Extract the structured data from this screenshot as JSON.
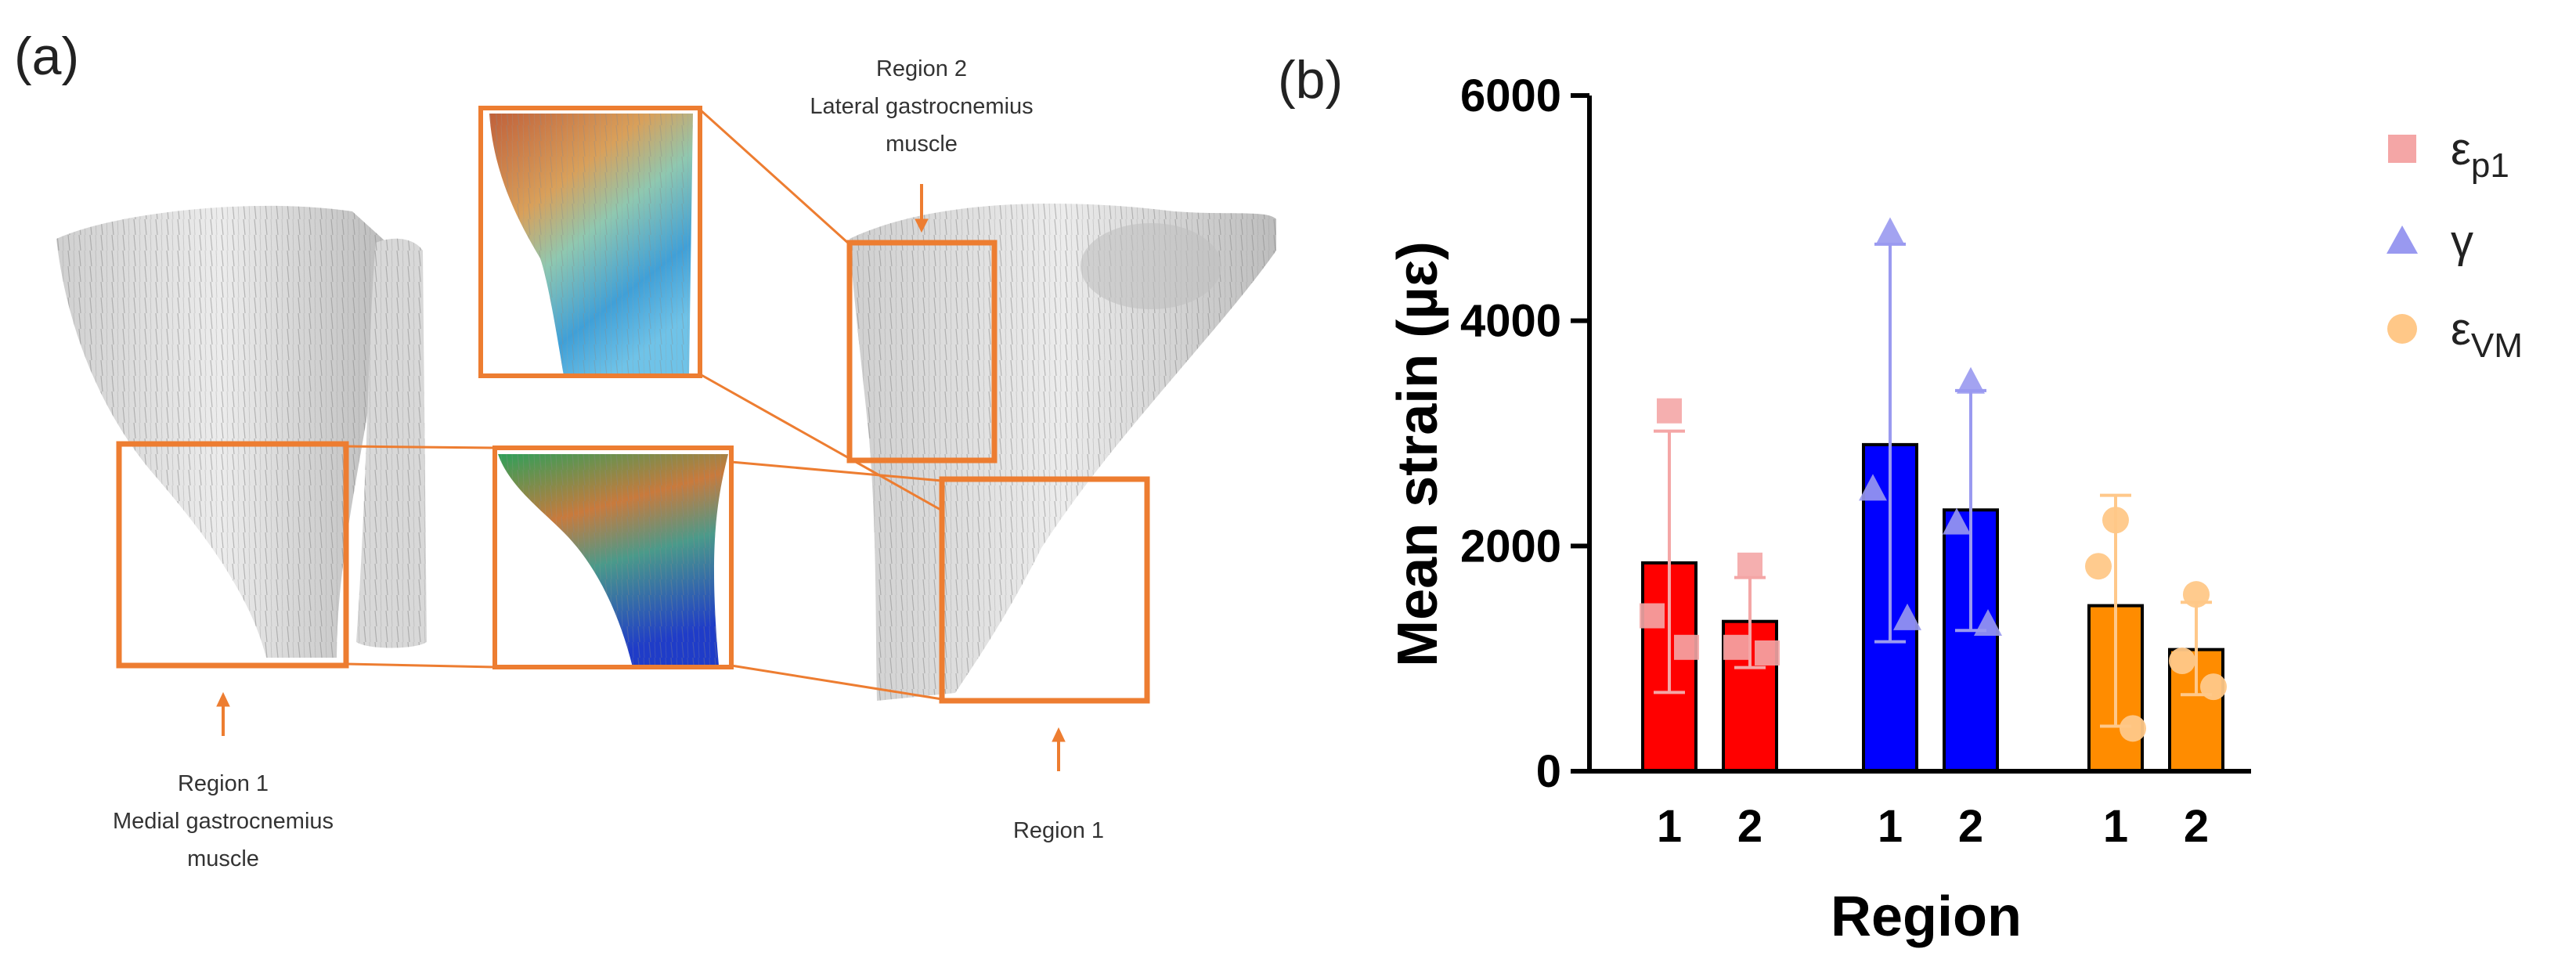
{
  "panel_a": {
    "label": "(a)",
    "region2_top": [
      "Region 2",
      "Lateral gastrocnemius",
      "muscle"
    ],
    "region1_left": [
      "Region 1",
      "Medial gastrocnemius",
      "muscle"
    ],
    "region1_right": "Region 1"
  },
  "panel_b": {
    "label": "(b)"
  },
  "colors": {
    "box": "#ED7D31",
    "bar_ep1": "#FF0000",
    "bar_gamma": "#0000FF",
    "bar_evm": "#FF8C00",
    "pt_ep1": "#F4A6A6",
    "pt_gamma": "#9999F0",
    "pt_evm": "#FFC888",
    "err_ep1": "#F4A6A6",
    "err_gamma": "#9A9AF0",
    "err_evm": "#FFC88A"
  },
  "chart_data": {
    "type": "bar",
    "xlabel": "Region",
    "ylabel": "Mean strain (µε)",
    "ylim": [
      0,
      6000
    ],
    "yticks": [
      0,
      2000,
      4000,
      6000
    ],
    "legend_placement": "right",
    "series": [
      {
        "key": "ep1",
        "name": "ε",
        "subscript": "p1",
        "marker": "square",
        "bars": [
          {
            "region": "1",
            "mean": 1850,
            "err_low": 700,
            "err_high": 3020,
            "points": [
              3200,
              1380,
              1100
            ]
          },
          {
            "region": "2",
            "mean": 1330,
            "err_low": 920,
            "err_high": 1720,
            "points": [
              1830,
              1100,
              1050
            ]
          }
        ]
      },
      {
        "key": "gamma",
        "name": "γ",
        "subscript": "",
        "marker": "triangle",
        "bars": [
          {
            "region": "1",
            "mean": 2900,
            "err_low": 1150,
            "err_high": 4680,
            "points": [
              4780,
              2500,
              1350
            ]
          },
          {
            "region": "2",
            "mean": 2320,
            "err_low": 1250,
            "err_high": 3380,
            "points": [
              3450,
              2200,
              1300
            ]
          }
        ]
      },
      {
        "key": "evm",
        "name": "ε",
        "subscript": "VM",
        "marker": "circle",
        "bars": [
          {
            "region": "1",
            "mean": 1470,
            "err_low": 400,
            "err_high": 2450,
            "points": [
              2230,
              1820,
              380
            ]
          },
          {
            "region": "2",
            "mean": 1080,
            "err_low": 680,
            "err_high": 1500,
            "points": [
              1570,
              980,
              750
            ]
          }
        ]
      }
    ]
  }
}
